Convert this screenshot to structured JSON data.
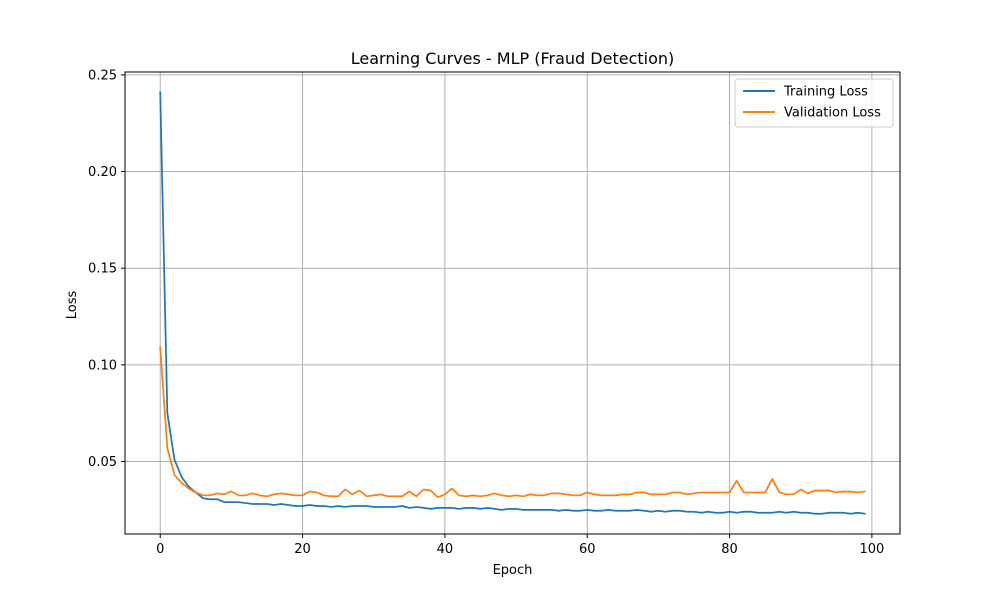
{
  "chart_data": {
    "type": "line",
    "title": "Learning Curves - MLP (Fraud Detection)",
    "xlabel": "Epoch",
    "ylabel": "Loss",
    "xlim": [
      -4.95,
      103.95
    ],
    "ylim": [
      0.0125,
      0.2515
    ],
    "xticks": [
      0,
      20,
      40,
      60,
      80,
      100
    ],
    "xtick_labels": [
      "0",
      "20",
      "40",
      "60",
      "80",
      "100"
    ],
    "yticks": [
      0.05,
      0.1,
      0.15,
      0.2,
      0.25
    ],
    "ytick_labels": [
      "0.05",
      "0.10",
      "0.15",
      "0.20",
      "0.25"
    ],
    "grid": true,
    "legend_position": "top-right",
    "x": [
      0,
      1,
      2,
      3,
      4,
      5,
      6,
      7,
      8,
      9,
      10,
      11,
      12,
      13,
      14,
      15,
      16,
      17,
      18,
      19,
      20,
      21,
      22,
      23,
      24,
      25,
      26,
      27,
      28,
      29,
      30,
      31,
      32,
      33,
      34,
      35,
      36,
      37,
      38,
      39,
      40,
      41,
      42,
      43,
      44,
      45,
      46,
      47,
      48,
      49,
      50,
      51,
      52,
      53,
      54,
      55,
      56,
      57,
      58,
      59,
      60,
      61,
      62,
      63,
      64,
      65,
      66,
      67,
      68,
      69,
      70,
      71,
      72,
      73,
      74,
      75,
      76,
      77,
      78,
      79,
      80,
      81,
      82,
      83,
      84,
      85,
      86,
      87,
      88,
      89,
      90,
      91,
      92,
      93,
      94,
      95,
      96,
      97,
      98,
      99
    ],
    "series": [
      {
        "name": "Training Loss",
        "color": "#1f77b4",
        "values": [
          0.241,
          0.075,
          0.051,
          0.042,
          0.037,
          0.034,
          0.031,
          0.0305,
          0.0305,
          0.029,
          0.029,
          0.029,
          0.0285,
          0.028,
          0.028,
          0.028,
          0.0275,
          0.028,
          0.0275,
          0.027,
          0.027,
          0.0275,
          0.027,
          0.027,
          0.0265,
          0.027,
          0.0265,
          0.027,
          0.027,
          0.027,
          0.0265,
          0.0265,
          0.0265,
          0.0265,
          0.027,
          0.026,
          0.0265,
          0.026,
          0.0255,
          0.026,
          0.026,
          0.026,
          0.0255,
          0.026,
          0.026,
          0.0255,
          0.026,
          0.0255,
          0.025,
          0.0255,
          0.0255,
          0.025,
          0.025,
          0.025,
          0.025,
          0.025,
          0.0245,
          0.025,
          0.0245,
          0.0245,
          0.025,
          0.0245,
          0.0245,
          0.025,
          0.0245,
          0.0245,
          0.0245,
          0.025,
          0.0245,
          0.024,
          0.0245,
          0.024,
          0.0245,
          0.0245,
          0.024,
          0.024,
          0.0235,
          0.024,
          0.0235,
          0.0235,
          0.024,
          0.0235,
          0.024,
          0.024,
          0.0235,
          0.0235,
          0.0235,
          0.024,
          0.0235,
          0.024,
          0.0235,
          0.0235,
          0.023,
          0.023,
          0.0235,
          0.0235,
          0.0235,
          0.023,
          0.0235,
          0.023
        ]
      },
      {
        "name": "Validation Loss",
        "color": "#ff7f0e",
        "values": [
          0.109,
          0.057,
          0.043,
          0.039,
          0.036,
          0.034,
          0.0325,
          0.0325,
          0.0335,
          0.033,
          0.0345,
          0.0325,
          0.0325,
          0.0335,
          0.0325,
          0.032,
          0.033,
          0.0335,
          0.033,
          0.0325,
          0.0325,
          0.0345,
          0.034,
          0.0325,
          0.032,
          0.032,
          0.0355,
          0.033,
          0.035,
          0.032,
          0.0325,
          0.033,
          0.032,
          0.032,
          0.032,
          0.0345,
          0.032,
          0.0355,
          0.035,
          0.0315,
          0.033,
          0.036,
          0.0325,
          0.032,
          0.0325,
          0.032,
          0.0325,
          0.0335,
          0.0325,
          0.032,
          0.0325,
          0.032,
          0.033,
          0.0325,
          0.0325,
          0.0335,
          0.0335,
          0.033,
          0.0325,
          0.0325,
          0.034,
          0.033,
          0.0325,
          0.0325,
          0.0325,
          0.033,
          0.033,
          0.034,
          0.034,
          0.033,
          0.033,
          0.033,
          0.034,
          0.034,
          0.033,
          0.0335,
          0.034,
          0.034,
          0.034,
          0.034,
          0.034,
          0.04,
          0.034,
          0.034,
          0.034,
          0.034,
          0.041,
          0.034,
          0.033,
          0.033,
          0.0355,
          0.0335,
          0.035,
          0.035,
          0.035,
          0.034,
          0.0345,
          0.0345,
          0.034,
          0.0345
        ]
      }
    ]
  }
}
